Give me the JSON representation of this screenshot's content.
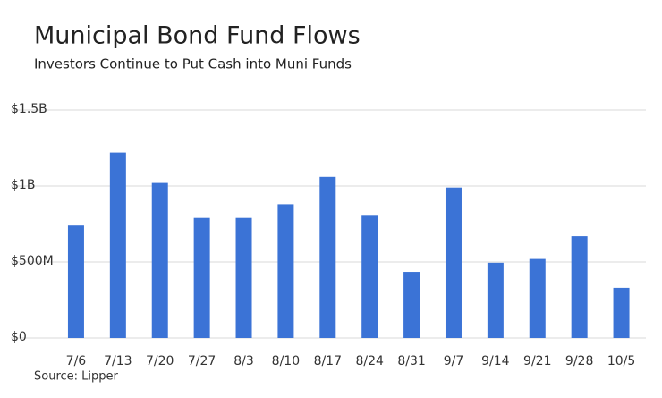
{
  "chart_data": {
    "type": "bar",
    "title": "Municipal Bond Fund Flows",
    "subtitle": "Investors Continue to Put Cash into Muni Funds",
    "source": "Source: Lipper",
    "categories": [
      "7/6",
      "7/13",
      "7/20",
      "7/27",
      "8/3",
      "8/10",
      "8/17",
      "8/24",
      "8/31",
      "9/7",
      "9/14",
      "9/21",
      "9/28",
      "10/5"
    ],
    "values": [
      740000000,
      1220000000,
      1020000000,
      790000000,
      790000000,
      880000000,
      1060000000,
      810000000,
      435000000,
      990000000,
      495000000,
      520000000,
      670000000,
      330000000
    ],
    "color": "#3b73d6",
    "ylim": [
      0,
      1500000000
    ],
    "yticks": [
      {
        "value": 0,
        "label": "$0"
      },
      {
        "value": 500000000,
        "label": "$500M"
      },
      {
        "value": 1000000000,
        "label": "$1B"
      },
      {
        "value": 1500000000,
        "label": "$1.5B"
      }
    ],
    "grid": true
  }
}
